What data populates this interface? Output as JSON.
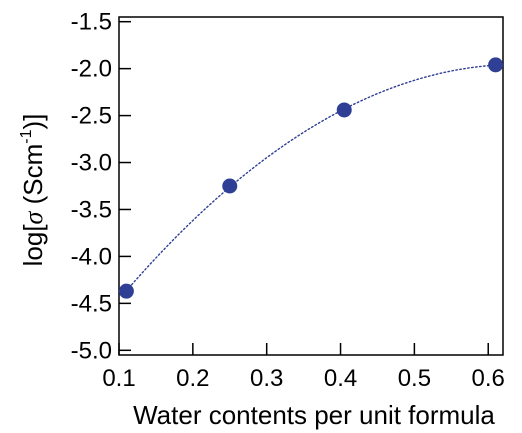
{
  "chart_data": {
    "type": "scatter",
    "xlabel": "Water contents per unit formula",
    "ylabel_parts": {
      "prefix": "log[",
      "sigma": "σ",
      "unit": " (Scm",
      "exponent": "-1",
      "suffix": ")]"
    },
    "xlim": [
      0.1,
      0.62
    ],
    "ylim": [
      -5.05,
      -1.45
    ],
    "x_ticks": [
      0.1,
      0.2,
      0.3,
      0.4,
      0.5,
      0.6
    ],
    "x_tick_labels": [
      "0.1",
      "0.2",
      "0.3",
      "0.4",
      "0.5",
      "0.6"
    ],
    "y_ticks": [
      -5.0,
      -4.5,
      -4.0,
      -3.5,
      -3.0,
      -2.5,
      -2.0,
      -1.5
    ],
    "y_tick_labels": [
      "-5.0",
      "-4.5",
      "-4.0",
      "-3.5",
      "-3.0",
      "-2.5",
      "-2.0",
      "-1.5"
    ],
    "series": [
      {
        "x": [
          0.11,
          0.25,
          0.405,
          0.61
        ],
        "y": [
          -4.37,
          -3.25,
          -2.44,
          -1.96
        ]
      }
    ],
    "fit_line": {
      "style": "dotted",
      "kind": "smooth"
    },
    "grid": false,
    "colors": {
      "marker": "#2e3f95",
      "line": "#2e3f95",
      "axis": "#000000"
    }
  }
}
